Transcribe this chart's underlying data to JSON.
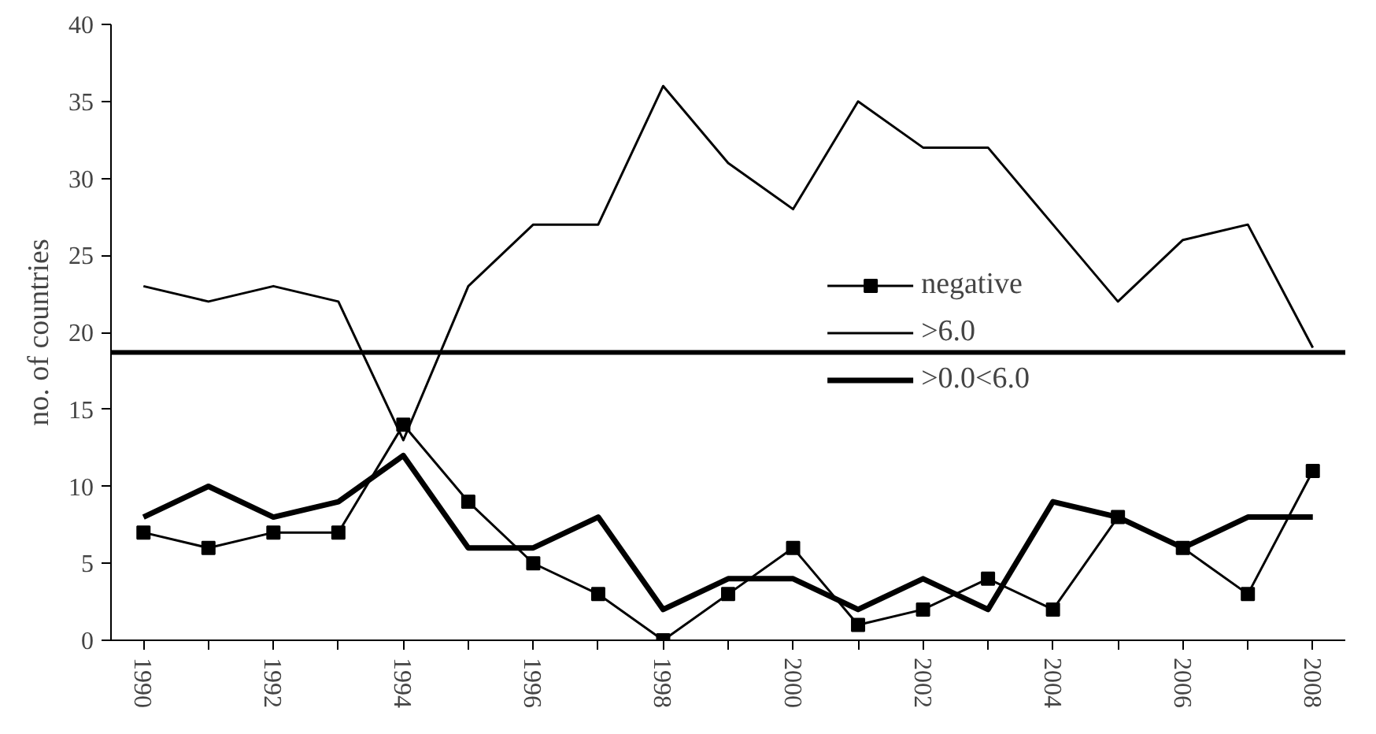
{
  "chart_data": {
    "type": "line",
    "ylabel": "no. of countries",
    "categories": [
      "1990",
      null,
      "1992",
      null,
      "1994",
      null,
      "1996",
      null,
      "1998",
      null,
      "2000",
      null,
      "2002",
      null,
      "2004",
      null,
      "2006",
      null,
      "2008"
    ],
    "ylim": [
      0,
      40
    ],
    "yticks": [
      0,
      5,
      10,
      15,
      20,
      25,
      30,
      35,
      40
    ],
    "grid": false,
    "legend": "right",
    "series": [
      {
        "name": "negative",
        "color": "#000000",
        "marker": "square",
        "values": [
          7,
          6,
          7,
          7,
          14,
          9,
          5,
          3,
          0,
          3,
          6,
          1,
          2,
          4,
          2,
          8,
          6,
          3,
          11
        ]
      },
      {
        "name": ">6.0",
        "color": "#000000",
        "marker": "none",
        "values": [
          23,
          22,
          23,
          22,
          13,
          23,
          27,
          27,
          36,
          31,
          28,
          35,
          32,
          32,
          27,
          22,
          26,
          27,
          19
        ]
      },
      {
        "name": ">0.0<6.0",
        "color": "#000000",
        "marker": "none",
        "values": [
          8,
          10,
          8,
          9,
          12,
          6,
          6,
          8,
          2,
          4,
          4,
          2,
          4,
          2,
          9,
          8,
          6,
          8,
          8
        ]
      }
    ],
    "ref_lines": [
      {
        "axis": "y",
        "value": 18.7,
        "label": null,
        "color": "#000000",
        "line_style": "solid"
      }
    ]
  }
}
